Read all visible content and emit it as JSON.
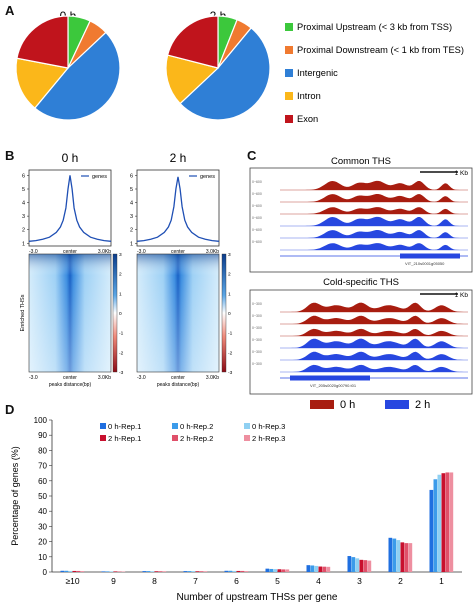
{
  "panels": {
    "a": "A",
    "b": "B",
    "c": "C",
    "d": "D"
  },
  "chart_data": [
    {
      "type": "pie",
      "panel": "A",
      "titles": [
        "0 h",
        "2 h"
      ],
      "categories": [
        "Proximal Upstream (< 3 kb from TSS)",
        "Proximal Downstream (< 1 kb from TES)",
        "Intergenic",
        "Intron",
        "Exon"
      ],
      "colors": [
        "#3cc83c",
        "#f07a30",
        "#2f7fd6",
        "#fbb71a",
        "#c0141c"
      ],
      "series": [
        {
          "values": [
            7,
            6,
            48,
            17,
            22
          ]
        },
        {
          "values": [
            6,
            5,
            52,
            16,
            21
          ]
        }
      ],
      "legend": "right"
    },
    {
      "type": "line",
      "panel": "B",
      "titles": [
        "0 h",
        "2 h"
      ],
      "legend_entry": "genes",
      "yticks": [
        "1",
        "2",
        "3",
        "4",
        "5",
        "6"
      ],
      "xticks": [
        "-3.0",
        "center",
        "3.0Kb"
      ],
      "ylim": [
        0.8,
        6.4
      ],
      "x": [
        -3,
        -2.5,
        -2,
        -1.5,
        -1,
        -0.7,
        -0.5,
        -0.3,
        -0.15,
        0,
        0.15,
        0.3,
        0.5,
        0.7,
        1,
        1.5,
        2,
        2.5,
        3
      ],
      "series": [
        {
          "values": [
            1.15,
            1.2,
            1.3,
            1.45,
            1.8,
            2.2,
            2.7,
            3.6,
            5.0,
            6.0,
            5.0,
            3.6,
            2.7,
            2.2,
            1.8,
            1.45,
            1.3,
            1.2,
            1.15
          ]
        },
        {
          "values": [
            1.15,
            1.2,
            1.3,
            1.45,
            1.8,
            2.2,
            2.7,
            3.7,
            5.0,
            5.9,
            5.0,
            3.7,
            2.7,
            2.2,
            1.8,
            1.45,
            1.3,
            1.2,
            1.15
          ]
        }
      ]
    },
    {
      "type": "heatmap",
      "panel": "B",
      "ylabel": "Enriched THSs",
      "xlabel": "peaks distance(bp)",
      "xticks": [
        "-3.0",
        "center",
        "3.0Kb"
      ],
      "colorbar_ticks": [
        "3",
        "2",
        "1",
        "0",
        "-1",
        "-2",
        "-3"
      ]
    },
    {
      "type": "area",
      "panel": "C",
      "tracks": [
        {
          "title": "Common THS",
          "scale": "1 Kb",
          "track_labels": [
            "0~600",
            "0~600",
            "0~600",
            "0~600",
            "0~600",
            "0~600"
          ],
          "gene": "VIT_210s0001g05050",
          "tracks_0h": 3,
          "tracks_2h": 3
        },
        {
          "title": "Cold-specific THS",
          "scale": "1 Kb",
          "track_labels": [
            "0~300",
            "0~300",
            "0~300",
            "0~300",
            "0~300",
            "0~300"
          ],
          "gene": "VIT_205s0020g00790.t01",
          "tracks_0h": 3,
          "tracks_2h": 3
        }
      ],
      "legend": [
        {
          "name": "0 h",
          "color": "#a81d10"
        },
        {
          "name": "2 h",
          "color": "#2747e0"
        }
      ]
    },
    {
      "type": "bar",
      "panel": "D",
      "categories": [
        "≥10",
        "9",
        "8",
        "7",
        "6",
        "5",
        "4",
        "3",
        "2",
        "1"
      ],
      "xlabel": "Number of upstream THSs per gene",
      "ylabel": "Percentage of genes (%)",
      "ylim": [
        0,
        100
      ],
      "yticks": [
        "0",
        "10",
        "20",
        "30",
        "40",
        "50",
        "60",
        "70",
        "80",
        "90",
        "100"
      ],
      "legend": "top-left",
      "series": [
        {
          "name": "0 h-Rep.1",
          "color": "#1f6fe0",
          "values": [
            0.8,
            0.4,
            0.6,
            0.6,
            0.8,
            2.2,
            4.5,
            10.5,
            22.5,
            54.0
          ]
        },
        {
          "name": "0 h-Rep.2",
          "color": "#3b9bea",
          "values": [
            0.8,
            0.4,
            0.6,
            0.6,
            0.8,
            2.0,
            4.3,
            9.8,
            22.0,
            61.0
          ]
        },
        {
          "name": "0 h-Rep.3",
          "color": "#8fd0f2",
          "values": [
            0.7,
            0.4,
            0.5,
            0.6,
            0.7,
            1.9,
            4.0,
            9.0,
            21.0,
            64.0
          ]
        },
        {
          "name": "2 h-Rep.1",
          "color": "#c8102e",
          "values": [
            0.7,
            0.4,
            0.5,
            0.5,
            0.7,
            1.8,
            3.6,
            8.0,
            19.5,
            65.0
          ]
        },
        {
          "name": "2 h-Rep.2",
          "color": "#e0506a",
          "values": [
            0.7,
            0.3,
            0.5,
            0.5,
            0.7,
            1.7,
            3.5,
            7.8,
            19.0,
            65.5
          ]
        },
        {
          "name": "2 h-Rep.3",
          "color": "#ee8fa0",
          "values": [
            0.6,
            0.3,
            0.5,
            0.5,
            0.6,
            1.7,
            3.4,
            7.5,
            19.0,
            65.5
          ]
        }
      ]
    }
  ]
}
